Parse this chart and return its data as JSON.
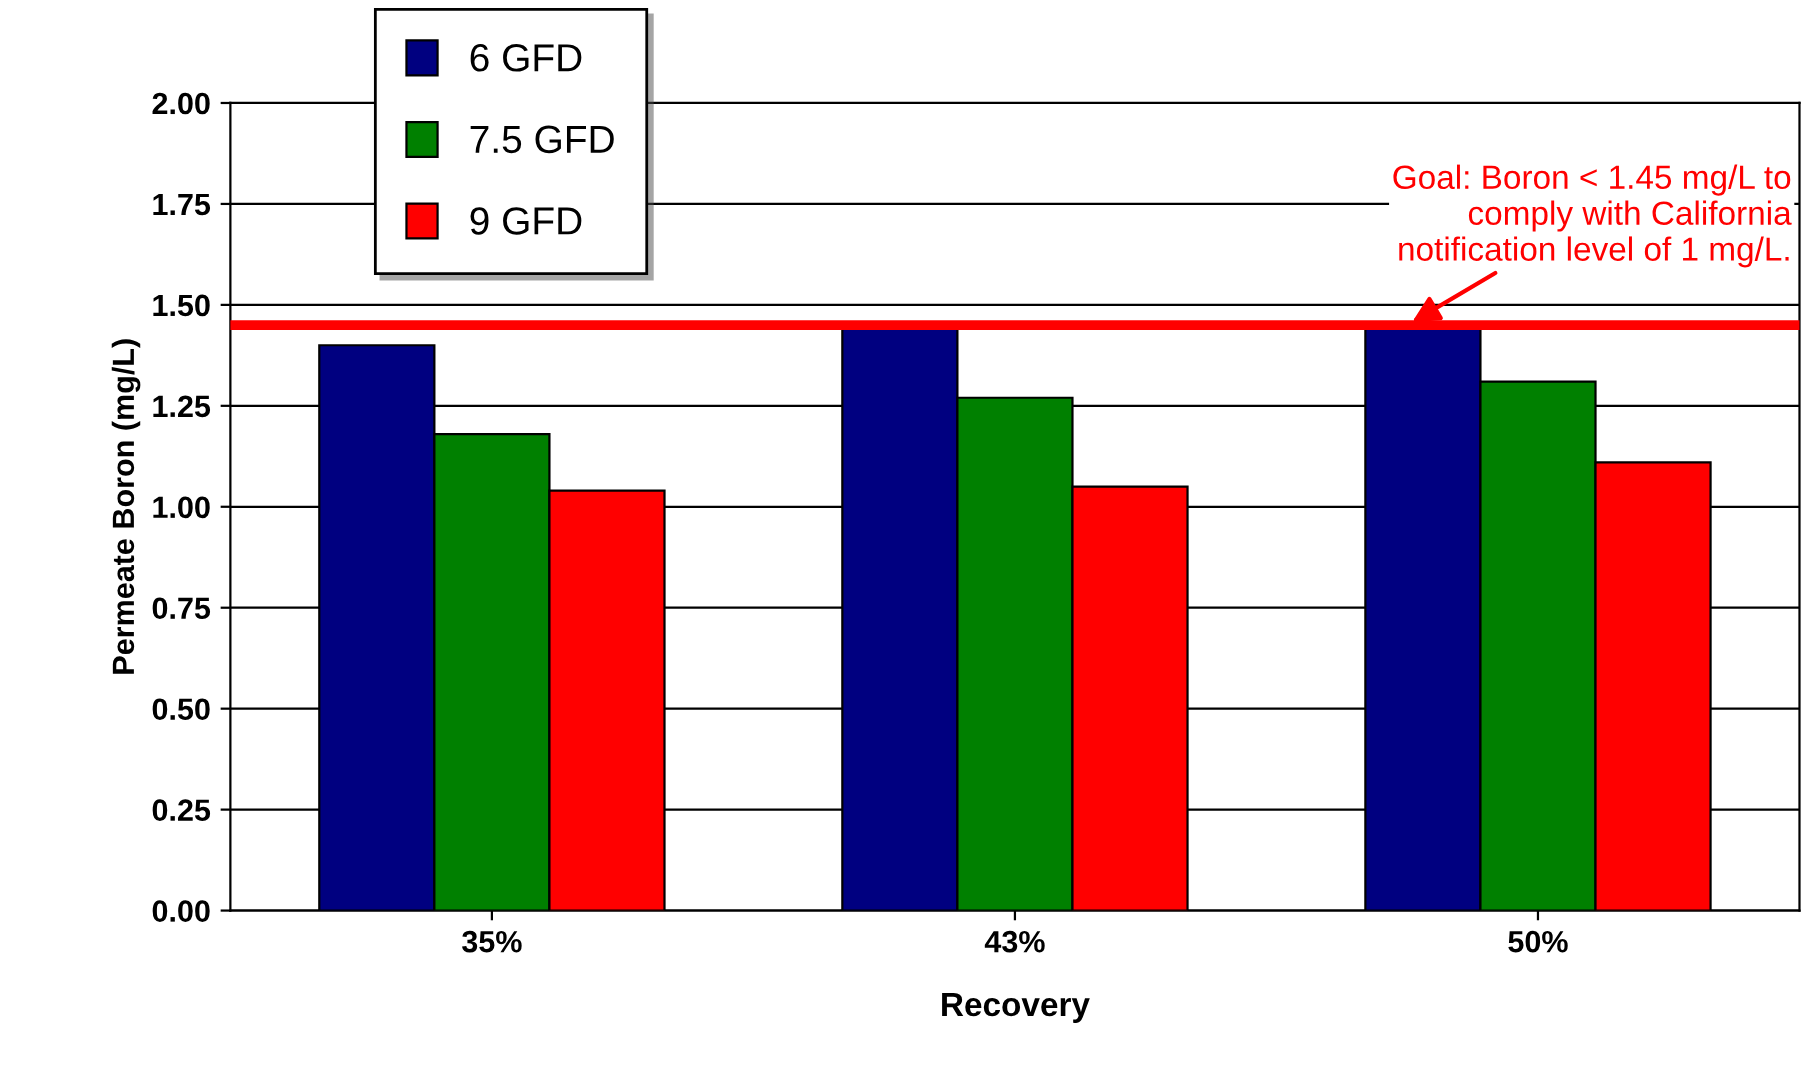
{
  "chart_data": {
    "type": "bar",
    "xlabel": "Recovery",
    "ylabel": "Permeate Boron (mg/L)",
    "categories": [
      "35%",
      "43%",
      "50%"
    ],
    "series": [
      {
        "name": "6 GFD",
        "color": "#000080",
        "values": [
          1.4,
          1.45,
          1.45
        ]
      },
      {
        "name": "7.5 GFD",
        "color": "#008000",
        "values": [
          1.18,
          1.27,
          1.31
        ]
      },
      {
        "name": "9 GFD",
        "color": "#ff0000",
        "values": [
          1.04,
          1.05,
          1.11
        ]
      }
    ],
    "ylim": [
      0,
      2
    ],
    "yticks": [
      {
        "value": 0,
        "label": "0.00"
      },
      {
        "value": 0.25,
        "label": "0.25"
      },
      {
        "value": 0.5,
        "label": "0.50"
      },
      {
        "value": 0.75,
        "label": "0.75"
      },
      {
        "value": 1,
        "label": "1.00"
      },
      {
        "value": 1.25,
        "label": "1.25"
      },
      {
        "value": 1.5,
        "label": "1.50"
      },
      {
        "value": 1.75,
        "label": "1.75"
      },
      {
        "value": 2,
        "label": "2.00"
      }
    ],
    "ref_lines": [
      {
        "axis": "y",
        "value": 1.45,
        "label": "Goal: Boron < 1.45 mg/L to\ncomply with California\nnotification level of 1 mg/L.",
        "color": "#ff0000",
        "line_style": "solid"
      }
    ],
    "grid": "y",
    "legend": "top left"
  }
}
